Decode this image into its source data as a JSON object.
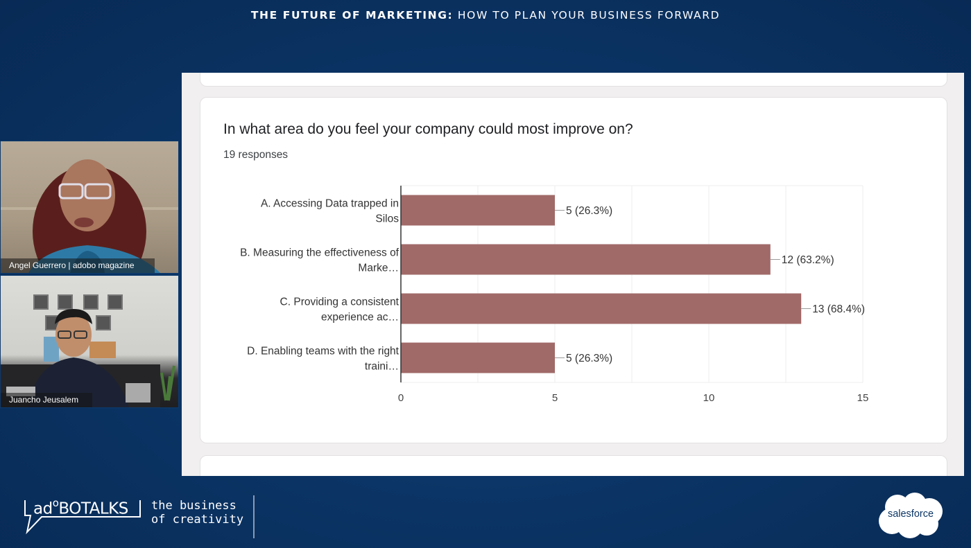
{
  "banner": {
    "title_bold": "THE FUTURE OF MARKETING:",
    "title_light": "HOW TO PLAN YOUR BUSINESS FORWARD"
  },
  "participants": [
    {
      "name": "Angel Guerrero | adobo magazine"
    },
    {
      "name": "Juancho Jeusalem"
    }
  ],
  "form": {
    "question": "In what area do you feel your company could most improve on?",
    "responses": "19 responses"
  },
  "colors": {
    "bar": "#a06a68",
    "background": "#0b3566",
    "grid": "#eeeeee",
    "axis": "#333333"
  },
  "chart_data": {
    "type": "bar",
    "orientation": "horizontal",
    "title": "In what area do you feel your company could most improve on?",
    "subtitle": "19 responses",
    "categories": [
      [
        "A. Accessing Data trapped in",
        "Silos"
      ],
      [
        "B. Measuring the effectiveness of",
        "Marke…"
      ],
      [
        "C. Providing a consistent",
        "experience ac…"
      ],
      [
        "D. Enabling teams with the right",
        "traini…"
      ]
    ],
    "values": [
      5,
      12,
      13,
      5
    ],
    "data_labels": [
      "5 (26.3%)",
      "12 (63.2%)",
      "13 (68.4%)",
      "5 (26.3%)"
    ],
    "xlabel": "",
    "ylabel": "",
    "xlim": [
      0,
      15
    ],
    "xticks": [
      "0",
      "5",
      "10",
      "15"
    ],
    "minor_grid_step": 2.5,
    "grid": true,
    "legend": "none"
  },
  "footer": {
    "brand": "adobo",
    "brand_o": "o",
    "brand_rest": "BOTALKS",
    "tagline_line1": "the business",
    "tagline_line2": "of creativity",
    "sponsor": "salesforce"
  }
}
